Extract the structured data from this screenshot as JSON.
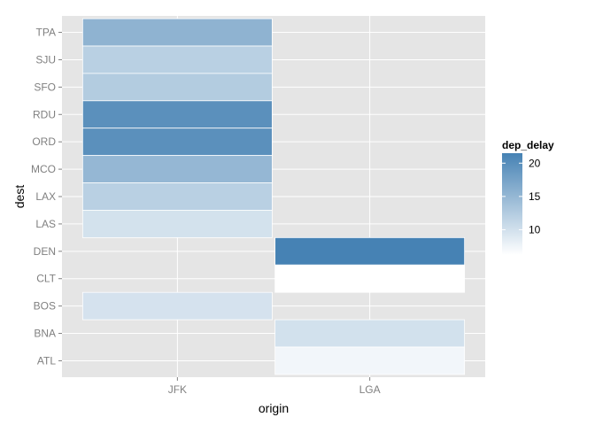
{
  "chart_data": {
    "type": "heatmap",
    "title": "",
    "xlabel": "origin",
    "ylabel": "dest",
    "x_categories": [
      "JFK",
      "LGA"
    ],
    "y_categories": [
      "ATL",
      "BNA",
      "BOS",
      "CLT",
      "DEN",
      "LAS",
      "LAX",
      "MCO",
      "ORD",
      "RDU",
      "SFO",
      "SJU",
      "TPA"
    ],
    "cells": [
      {
        "origin": "JFK",
        "dest": "TPA",
        "dep_delay": 15.5
      },
      {
        "origin": "JFK",
        "dest": "SJU",
        "dep_delay": 12.0
      },
      {
        "origin": "JFK",
        "dest": "SFO",
        "dep_delay": 12.5
      },
      {
        "origin": "JFK",
        "dest": "RDU",
        "dep_delay": 19.8
      },
      {
        "origin": "JFK",
        "dest": "ORD",
        "dep_delay": 19.8
      },
      {
        "origin": "JFK",
        "dest": "MCO",
        "dep_delay": 15.0
      },
      {
        "origin": "JFK",
        "dest": "LAX",
        "dep_delay": 12.0
      },
      {
        "origin": "JFK",
        "dest": "LAS",
        "dep_delay": 9.8
      },
      {
        "origin": "JFK",
        "dest": "BOS",
        "dep_delay": 9.7
      },
      {
        "origin": "LGA",
        "dest": "DEN",
        "dep_delay": 21.5
      },
      {
        "origin": "LGA",
        "dest": "CLT",
        "dep_delay": 6.2
      },
      {
        "origin": "LGA",
        "dest": "BNA",
        "dep_delay": 9.9
      },
      {
        "origin": "LGA",
        "dest": "ATL",
        "dep_delay": 7.3
      }
    ],
    "legend": {
      "title": "dep_delay",
      "ticks": [
        10,
        15,
        20
      ],
      "range": [
        6.2,
        21.5
      ],
      "low_color": "#ffffff",
      "high_color": "#4682b4"
    },
    "grid": true,
    "legend_position": "right",
    "panel_color": "#e5e5e5"
  }
}
